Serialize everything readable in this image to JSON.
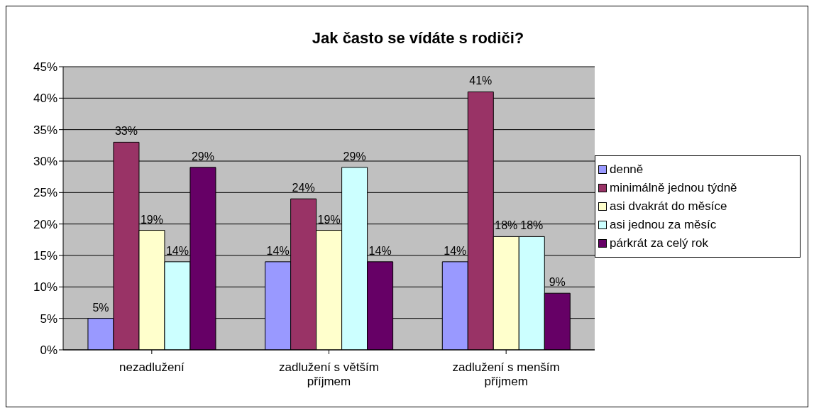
{
  "chart_data": {
    "type": "bar",
    "title": "Jak často se vídáte s rodiči?",
    "categories": [
      "nezadlužení",
      "zadlužení s větším příjmem",
      "zadlužení s menším příjmem"
    ],
    "series": [
      {
        "name": "denně",
        "color": "#9999ff",
        "values": [
          5,
          14,
          14
        ],
        "value_labels": [
          "5%",
          "14%",
          "14%"
        ]
      },
      {
        "name": "minimálně jednou týdně",
        "color": "#993366",
        "values": [
          33,
          24,
          41
        ],
        "value_labels": [
          "33%",
          "24%",
          "41%"
        ]
      },
      {
        "name": "asi dvakrát do měsíce",
        "color": "#ffffcc",
        "values": [
          19,
          19,
          18
        ],
        "value_labels": [
          "19%",
          "19%",
          "18%"
        ]
      },
      {
        "name": "asi jednou za měsíc",
        "color": "#ccffff",
        "values": [
          14,
          29,
          18
        ],
        "value_labels": [
          "14%",
          "29%",
          "18%"
        ]
      },
      {
        "name": "párkrát za celý rok",
        "color": "#660066",
        "values": [
          29,
          14,
          9
        ],
        "value_labels": [
          "29%",
          "14%",
          "9%"
        ]
      }
    ],
    "ylim": [
      0,
      45
    ],
    "yticks": [
      {
        "value": 0,
        "label": "0%"
      },
      {
        "value": 5,
        "label": "5%"
      },
      {
        "value": 10,
        "label": "10%"
      },
      {
        "value": 15,
        "label": "15%"
      },
      {
        "value": 20,
        "label": "20%"
      },
      {
        "value": 25,
        "label": "25%"
      },
      {
        "value": 30,
        "label": "30%"
      },
      {
        "value": 35,
        "label": "35%"
      },
      {
        "value": 40,
        "label": "40%"
      },
      {
        "value": 45,
        "label": "45%"
      }
    ],
    "grid": "y",
    "legend": "right"
  }
}
